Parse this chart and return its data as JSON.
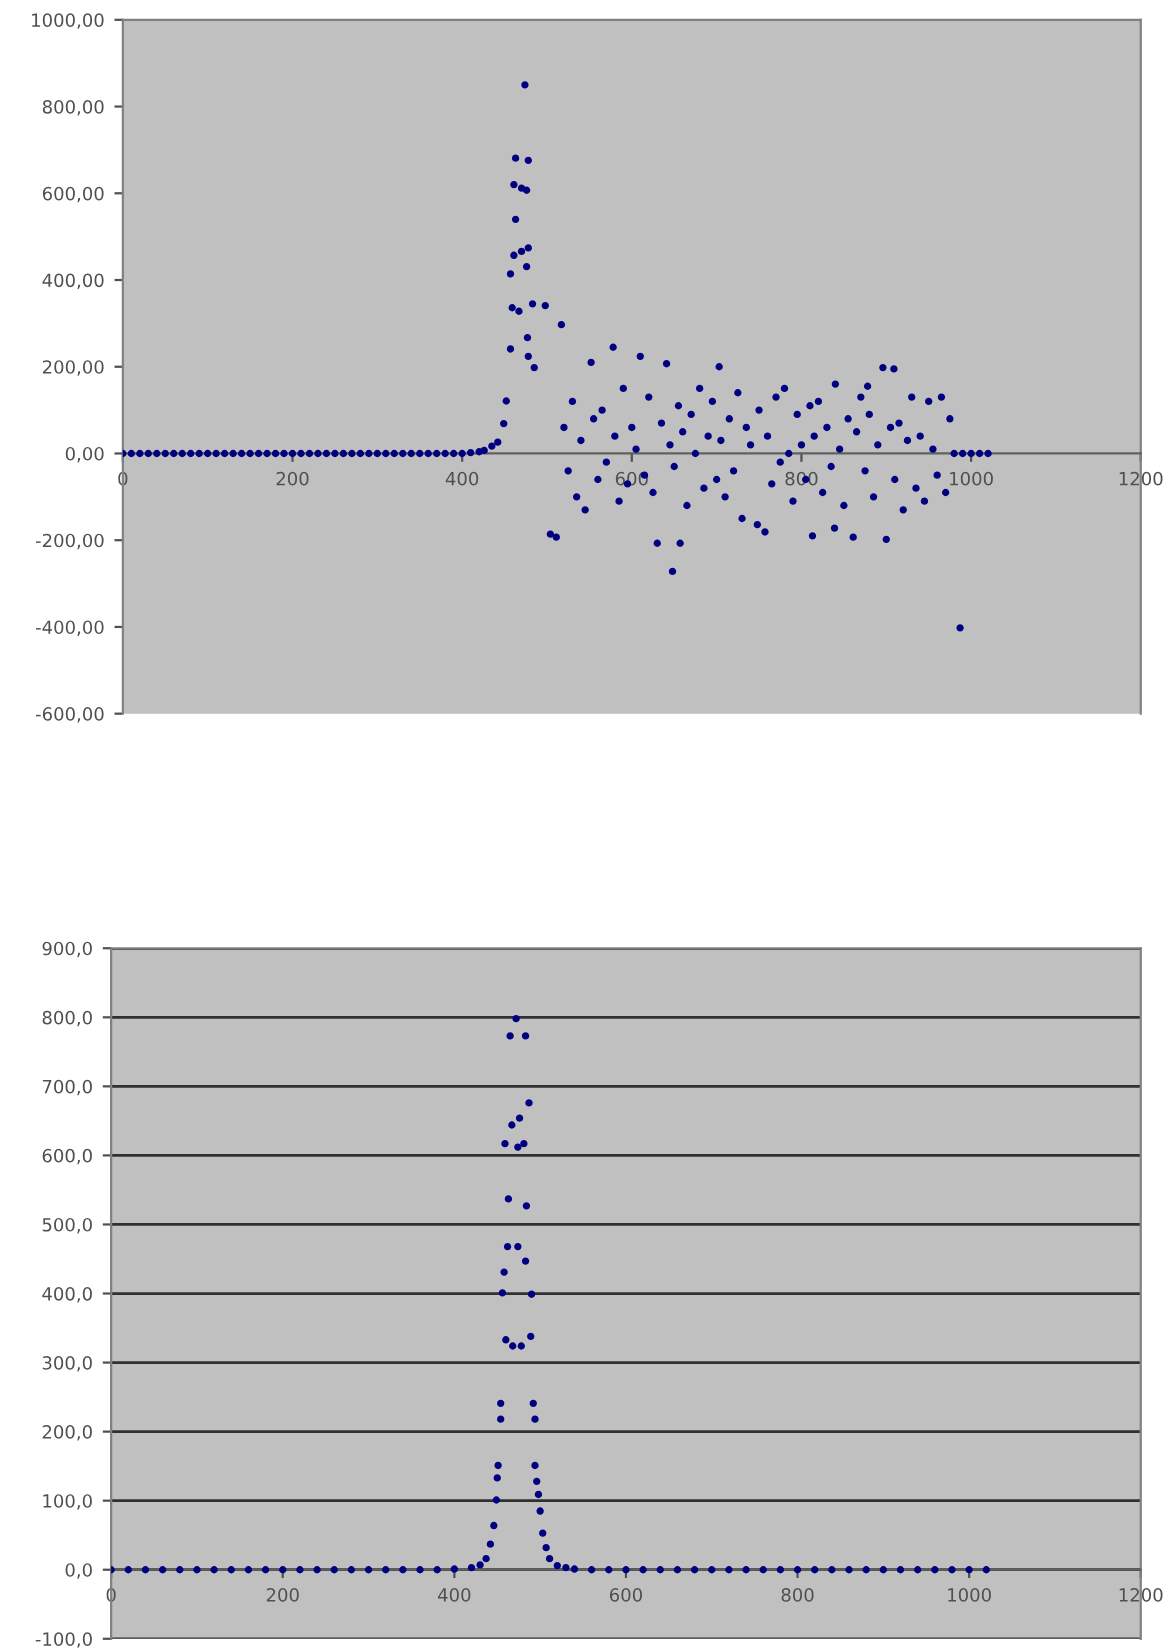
{
  "chart_data": [
    {
      "type": "scatter",
      "marker": "circle",
      "grid": false,
      "xlim": [
        0,
        1200
      ],
      "ylim": [
        -600,
        1000
      ],
      "xticks": [
        0,
        200,
        400,
        600,
        800,
        1000,
        1200
      ],
      "yticks": [
        {
          "value": -600,
          "label": "-600,00"
        },
        {
          "value": -400,
          "label": "-400,00"
        },
        {
          "value": -200,
          "label": "-200,00"
        },
        {
          "value": 0,
          "label": "0,00"
        },
        {
          "value": 200,
          "label": "200,00"
        },
        {
          "value": 400,
          "label": "400,00"
        },
        {
          "value": 600,
          "label": "600,00"
        },
        {
          "value": 800,
          "label": "800,00"
        },
        {
          "value": 1000,
          "label": "1000,00"
        }
      ],
      "series": [
        {
          "color": "#000080",
          "x": [
            0,
            10,
            20,
            30,
            40,
            50,
            60,
            70,
            80,
            90,
            100,
            110,
            120,
            130,
            140,
            150,
            160,
            170,
            180,
            190,
            200,
            210,
            220,
            230,
            240,
            250,
            260,
            270,
            280,
            290,
            300,
            310,
            320,
            330,
            340,
            350,
            360,
            370,
            380,
            390,
            400,
            410,
            420,
            426,
            435,
            442,
            449,
            452,
            457,
            457,
            459,
            461,
            461,
            463,
            463,
            467,
            470,
            470,
            474,
            476,
            476,
            477,
            478,
            478,
            478,
            483,
            485,
            498,
            504,
            511,
            517,
            520,
            525,
            530,
            535,
            540,
            545,
            552,
            555,
            560,
            565,
            570,
            578,
            580,
            585,
            590,
            595,
            600,
            605,
            610,
            615,
            620,
            625,
            630,
            635,
            641,
            645,
            648,
            650,
            655,
            657,
            660,
            665,
            670,
            675,
            680,
            685,
            690,
            695,
            700,
            703,
            705,
            710,
            715,
            720,
            725,
            730,
            735,
            740,
            748,
            750,
            757,
            760,
            765,
            770,
            775,
            780,
            785,
            790,
            795,
            800,
            805,
            810,
            813,
            815,
            820,
            825,
            830,
            835,
            839,
            840,
            845,
            850,
            855,
            861,
            865,
            870,
            875,
            878,
            880,
            885,
            890,
            896,
            900,
            905,
            909,
            910,
            915,
            920,
            925,
            930,
            935,
            940,
            945,
            950,
            955,
            960,
            965,
            970,
            975,
            980,
            987,
            990,
            1000,
            1010,
            1020
          ],
          "values": [
            0,
            0,
            0,
            0,
            0,
            0,
            0,
            0,
            0,
            0,
            0,
            0,
            0,
            0,
            0,
            0,
            0,
            0,
            0,
            0,
            0,
            0,
            0,
            0,
            0,
            0,
            0,
            0,
            0,
            0,
            0,
            0,
            0,
            0,
            0,
            0,
            0,
            0,
            0,
            0,
            0,
            2,
            4,
            7,
            17,
            26,
            69,
            121,
            414,
            241,
            336,
            457,
            620,
            681,
            540,
            328,
            466,
            612,
            850,
            607,
            431,
            267,
            676,
            474,
            224,
            345,
            198,
            341,
            -186,
            -193,
            297,
            60,
            -40,
            120,
            -100,
            30,
            -130,
            210,
            80,
            -60,
            100,
            -20,
            245,
            40,
            -110,
            150,
            -70,
            60,
            10,
            224,
            -50,
            130,
            -90,
            -207,
            70,
            207,
            20,
            -272,
            -30,
            110,
            -207,
            50,
            -120,
            90,
            0,
            150,
            -80,
            40,
            120,
            -60,
            200,
            30,
            -100,
            80,
            -40,
            140,
            -150,
            60,
            20,
            -164,
            100,
            -181,
            40,
            -70,
            130,
            -20,
            150,
            0,
            -110,
            90,
            20,
            -60,
            110,
            -190,
            40,
            120,
            -90,
            60,
            -30,
            -172,
            160,
            10,
            -120,
            80,
            -193,
            50,
            130,
            -40,
            155,
            90,
            -100,
            20,
            198,
            -198,
            60,
            195,
            -60,
            70,
            -130,
            30,
            130,
            -80,
            40,
            -110,
            120,
            10,
            -50,
            130,
            -90,
            80,
            0,
            -402,
            0,
            0,
            0,
            0
          ]
        }
      ]
    },
    {
      "type": "scatter",
      "marker": "circle",
      "grid": "y",
      "xlim": [
        0,
        1200
      ],
      "ylim": [
        -100,
        900
      ],
      "xticks": [
        0,
        200,
        400,
        600,
        800,
        1000,
        1200
      ],
      "yticks": [
        {
          "value": -100,
          "label": "-100,0"
        },
        {
          "value": 0,
          "label": "0,0"
        },
        {
          "value": 100,
          "label": "100,0"
        },
        {
          "value": 200,
          "label": "200,0"
        },
        {
          "value": 300,
          "label": "300,0"
        },
        {
          "value": 400,
          "label": "400,0"
        },
        {
          "value": 500,
          "label": "500,0"
        },
        {
          "value": 600,
          "label": "600,0"
        },
        {
          "value": 700,
          "label": "700,0"
        },
        {
          "value": 800,
          "label": "800,0"
        },
        {
          "value": 900,
          "label": "900,0"
        }
      ],
      "series": [
        {
          "color": "#000080",
          "x": [
            0,
            20,
            40,
            60,
            80,
            100,
            120,
            140,
            160,
            180,
            200,
            220,
            240,
            260,
            280,
            300,
            320,
            340,
            360,
            380,
            400,
            420,
            430,
            437,
            442,
            446,
            449,
            450,
            451,
            454,
            454,
            456,
            458,
            459,
            460,
            462,
            463,
            465,
            467,
            468,
            472,
            474,
            474,
            476,
            478,
            481,
            483,
            483,
            484,
            487,
            489,
            490,
            492,
            494,
            494,
            496,
            498,
            500,
            503,
            507,
            511,
            520,
            530,
            540,
            560,
            580,
            600,
            620,
            640,
            660,
            680,
            700,
            720,
            740,
            760,
            780,
            800,
            820,
            840,
            860,
            880,
            900,
            920,
            940,
            960,
            980,
            1000,
            1020
          ],
          "values": [
            0,
            0,
            0,
            0,
            0,
            0,
            0,
            0,
            0,
            0,
            0,
            0,
            0,
            0,
            0,
            0,
            0,
            0,
            0,
            0,
            1,
            3,
            7,
            16,
            37,
            64,
            101,
            133,
            151,
            241,
            218,
            401,
            431,
            617,
            333,
            468,
            537,
            773,
            644,
            324,
            798,
            612,
            468,
            654,
            324,
            617,
            773,
            447,
            527,
            676,
            338,
            399,
            241,
            218,
            151,
            128,
            109,
            85,
            53,
            32,
            16,
            6,
            3,
            1,
            0,
            0,
            0,
            0,
            0,
            0,
            0,
            0,
            0,
            0,
            0,
            0,
            0,
            0,
            0,
            0,
            0,
            0,
            0,
            0,
            0,
            0,
            0,
            0
          ]
        }
      ]
    }
  ]
}
